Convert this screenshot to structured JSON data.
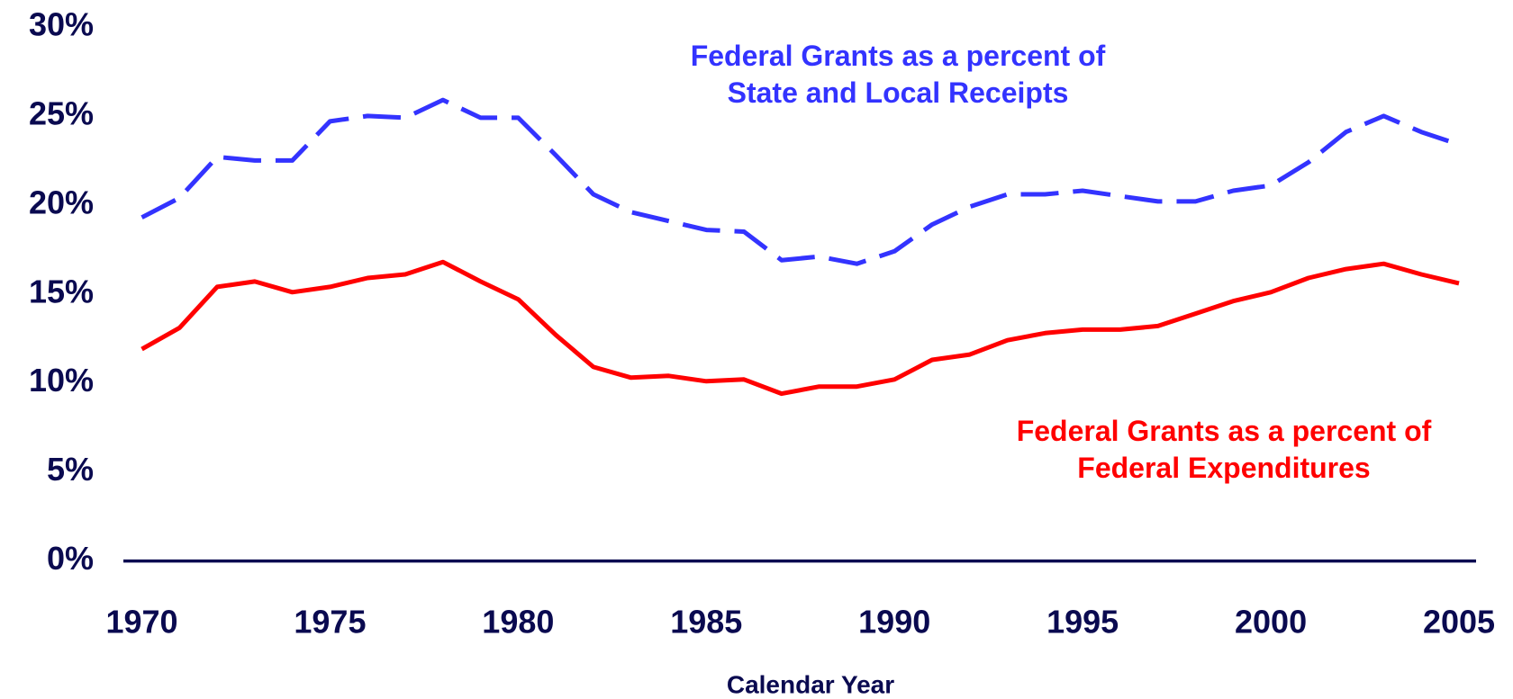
{
  "chart_data": {
    "type": "line",
    "x_label": "Calendar Year",
    "x": [
      1970,
      1971,
      1972,
      1973,
      1974,
      1975,
      1976,
      1977,
      1978,
      1979,
      1980,
      1981,
      1982,
      1983,
      1984,
      1985,
      1986,
      1987,
      1988,
      1989,
      1990,
      1991,
      1992,
      1993,
      1994,
      1995,
      1996,
      1997,
      1998,
      1999,
      2000,
      2001,
      2002,
      2003,
      2004,
      2005
    ],
    "series": [
      {
        "name": "Federal Grants as a percent of State and Local Receipts",
        "color": "#3333ff",
        "line_style": "dashed",
        "values": [
          19.3,
          20.4,
          22.7,
          22.5,
          22.5,
          24.7,
          25.0,
          24.9,
          25.9,
          24.9,
          24.9,
          22.8,
          20.6,
          19.6,
          19.1,
          18.6,
          18.5,
          16.9,
          17.1,
          16.7,
          17.4,
          18.9,
          19.9,
          20.6,
          20.6,
          20.8,
          20.5,
          20.2,
          20.2,
          20.8,
          21.1,
          22.4,
          24.1,
          25.0,
          24.1,
          23.4
        ]
      },
      {
        "name": "Federal Grants as a percent of Federal Expenditures",
        "color": "#ff0000",
        "line_style": "solid",
        "values": [
          11.9,
          13.1,
          15.4,
          15.7,
          15.1,
          15.4,
          15.9,
          16.1,
          16.8,
          15.7,
          14.7,
          12.7,
          10.9,
          10.3,
          10.4,
          10.1,
          10.2,
          9.4,
          9.8,
          9.8,
          10.2,
          11.3,
          11.6,
          12.4,
          12.8,
          13.0,
          13.0,
          13.2,
          13.9,
          14.6,
          15.1,
          15.9,
          16.4,
          16.7,
          16.1,
          15.6
        ]
      }
    ],
    "xlim": [
      1970,
      2005
    ],
    "xticks": [
      1970,
      1975,
      1980,
      1985,
      1990,
      1995,
      2000,
      2005
    ],
    "ylim": [
      0,
      30
    ],
    "yticks": [
      {
        "value": 0,
        "label": "0%"
      },
      {
        "value": 5,
        "label": "5%"
      },
      {
        "value": 10,
        "label": "10%"
      },
      {
        "value": 15,
        "label": "15%"
      },
      {
        "value": 20,
        "label": "20%"
      },
      {
        "value": 25,
        "label": "25%"
      },
      {
        "value": 30,
        "label": "30%"
      }
    ],
    "grid": false
  }
}
